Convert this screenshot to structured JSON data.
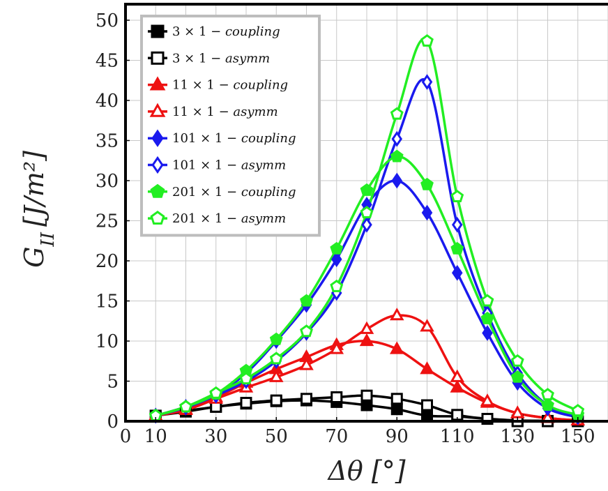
{
  "chart_data": {
    "type": "line",
    "xlabel": "Δθ [°]",
    "ylabel": "G_II [J/m^2]",
    "xlim": [
      0,
      160
    ],
    "ylim": [
      0,
      52
    ],
    "x_ticks": [
      0,
      10,
      30,
      50,
      70,
      90,
      110,
      130,
      150
    ],
    "y_ticks": [
      0,
      5,
      10,
      15,
      20,
      25,
      30,
      35,
      40,
      45,
      50
    ],
    "grid": true,
    "legend_position": "top-left",
    "x": [
      10,
      20,
      30,
      40,
      50,
      60,
      70,
      80,
      90,
      100,
      110,
      120,
      130,
      140,
      150
    ],
    "series": [
      {
        "name": "3 × 1 − coupling",
        "prefix": "3 × 1 −",
        "suffix": "coupling",
        "color": "#000000",
        "marker": "square",
        "filled": true,
        "values": [
          0.7,
          1.2,
          1.8,
          2.2,
          2.5,
          2.6,
          2.4,
          2.0,
          1.5,
          0.7,
          0.6,
          0.3,
          0.1,
          0.05,
          0.0
        ]
      },
      {
        "name": "3 × 1 − asymm",
        "prefix": "3 × 1 −",
        "suffix": "asymm",
        "color": "#000000",
        "marker": "square",
        "filled": false,
        "values": [
          0.7,
          1.3,
          1.8,
          2.3,
          2.6,
          2.8,
          3.0,
          3.2,
          2.8,
          2.0,
          0.8,
          0.3,
          0.0,
          0.0,
          0.0
        ]
      },
      {
        "name": "11 × 1 − coupling",
        "prefix": "11 × 1 −",
        "suffix": "coupling",
        "color": "#ee1111",
        "marker": "triangle",
        "filled": true,
        "values": [
          0.7,
          1.5,
          3.0,
          4.8,
          6.5,
          8.0,
          9.5,
          10.0,
          9.0,
          6.5,
          4.2,
          2.3,
          1.0,
          0.4,
          0.1
        ]
      },
      {
        "name": "11 × 1 − asymm",
        "prefix": "11 × 1 −",
        "suffix": "asymm",
        "color": "#ee1111",
        "marker": "triangle",
        "filled": false,
        "values": [
          0.7,
          1.4,
          2.8,
          4.2,
          5.5,
          7.0,
          9.0,
          11.5,
          13.2,
          11.8,
          5.5,
          2.5,
          1.0,
          0.4,
          0.1
        ]
      },
      {
        "name": "101 × 1 − coupling",
        "prefix": "101 × 1 −",
        "suffix": "coupling",
        "color": "#1a1aee",
        "marker": "diamond",
        "filled": true,
        "values": [
          0.7,
          1.8,
          3.3,
          6.0,
          10.0,
          14.5,
          20.2,
          27.0,
          30.0,
          26.0,
          18.5,
          11.0,
          4.8,
          1.6,
          0.5
        ]
      },
      {
        "name": "101 × 1 − asymm",
        "prefix": "101 × 1 −",
        "suffix": "asymm",
        "color": "#1a1aee",
        "marker": "diamond",
        "filled": false,
        "values": [
          0.7,
          1.7,
          3.2,
          5.0,
          7.5,
          11.0,
          16.0,
          24.5,
          35.2,
          42.3,
          24.5,
          13.5,
          6.0,
          2.0,
          0.6
        ]
      },
      {
        "name": "201 × 1 − coupling",
        "prefix": "201 × 1 −",
        "suffix": "coupling",
        "color": "#22ee22",
        "marker": "pentagon",
        "filled": true,
        "values": [
          0.7,
          1.8,
          3.4,
          6.3,
          10.2,
          15.0,
          21.5,
          28.8,
          33.0,
          29.5,
          21.5,
          12.8,
          5.5,
          2.0,
          0.8
        ]
      },
      {
        "name": "201 × 1 − asymm",
        "prefix": "201 × 1 −",
        "suffix": "asymm",
        "color": "#22ee22",
        "marker": "pentagon",
        "filled": false,
        "values": [
          0.7,
          1.8,
          3.5,
          5.3,
          7.8,
          11.2,
          16.8,
          26.0,
          38.3,
          47.4,
          28.0,
          15.0,
          7.5,
          3.3,
          1.3
        ]
      }
    ]
  }
}
